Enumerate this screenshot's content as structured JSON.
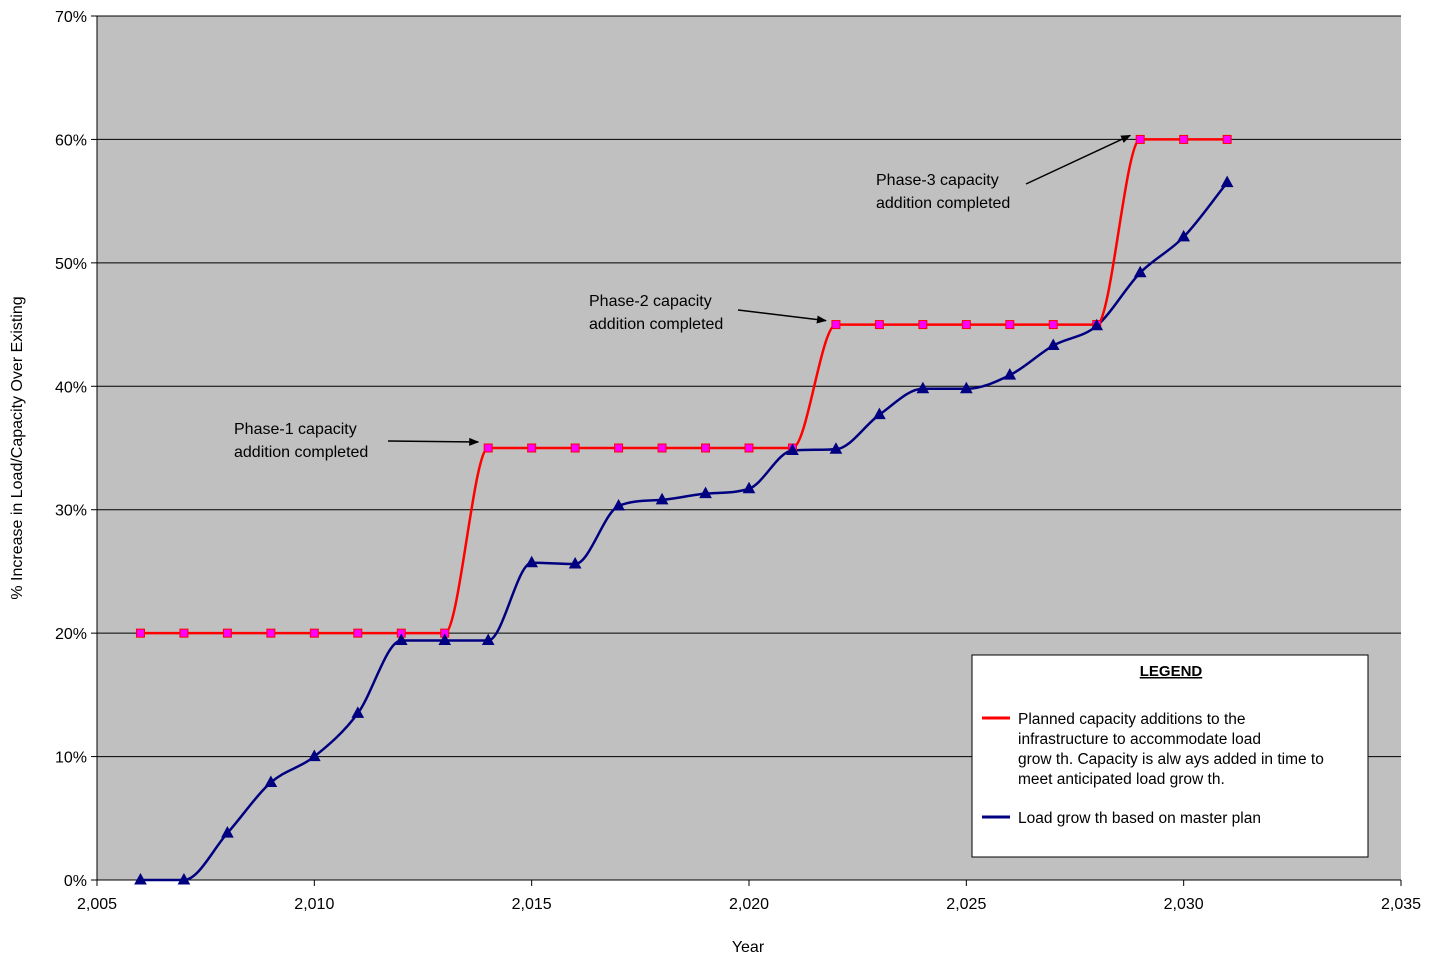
{
  "chart_data": {
    "type": "line",
    "xlabel": "Year",
    "ylabel": "% Increase in Load/Capacity Over Existing",
    "xlim": [
      2005,
      2035
    ],
    "ylim": [
      0,
      70
    ],
    "x_ticks": [
      2005,
      2010,
      2015,
      2020,
      2025,
      2030,
      2035
    ],
    "x_tick_labels": [
      "2,005",
      "2,010",
      "2,015",
      "2,020",
      "2,025",
      "2,030",
      "2,035"
    ],
    "y_ticks": [
      0,
      10,
      20,
      30,
      40,
      50,
      60,
      70
    ],
    "y_tick_labels": [
      "0%",
      "10%",
      "20%",
      "30%",
      "40%",
      "50%",
      "60%",
      "70%"
    ],
    "grid": "horizontal",
    "plot_background": "#c0c0c0",
    "series": [
      {
        "id": "capacity",
        "name": "Planned capacity additions to the infrastructure to accommodate load growth. Capacity is always added in time to meet anticipated load growth.",
        "color": "#ff0000",
        "marker": "square",
        "marker_color": "#ff00ff",
        "x": [
          2006,
          2007,
          2008,
          2009,
          2010,
          2011,
          2012,
          2013,
          2014,
          2015,
          2016,
          2017,
          2018,
          2019,
          2020,
          2021,
          2022,
          2023,
          2024,
          2025,
          2026,
          2027,
          2028,
          2029,
          2030,
          2031
        ],
        "y": [
          20,
          20,
          20,
          20,
          20,
          20,
          20,
          20,
          35,
          35,
          35,
          35,
          35,
          35,
          35,
          35,
          45,
          45,
          45,
          45,
          45,
          45,
          45,
          60,
          60,
          60
        ]
      },
      {
        "id": "load",
        "name": "Load growth based on master plan",
        "color": "#000080",
        "marker": "triangle",
        "marker_color": "#000080",
        "x": [
          2006,
          2007,
          2008,
          2009,
          2010,
          2011,
          2012,
          2013,
          2014,
          2015,
          2016,
          2017,
          2018,
          2019,
          2020,
          2021,
          2022,
          2023,
          2024,
          2025,
          2026,
          2027,
          2028,
          2029,
          2030,
          2031
        ],
        "y": [
          0,
          0,
          3.8,
          7.9,
          10,
          13.5,
          19.4,
          19.4,
          19.4,
          25.7,
          25.6,
          30.3,
          30.8,
          31.3,
          31.7,
          34.8,
          34.9,
          37.7,
          39.8,
          39.8,
          40.9,
          43.3,
          44.9,
          49.2,
          52.1,
          56.5
        ]
      }
    ],
    "legend": {
      "title": "LEGEND",
      "position": "bottom-right",
      "entries": [
        {
          "series": "capacity",
          "lines": [
            "Planned capacity additions to the",
            "infrastructure to accommodate load",
            "grow th. Capacity is alw ays added in time to",
            "meet anticipated load grow th."
          ]
        },
        {
          "series": "load",
          "lines": [
            "Load grow th based on master plan"
          ]
        }
      ]
    },
    "annotations": [
      {
        "lines": [
          "Phase-1 capacity",
          "addition completed"
        ],
        "arrow_to": [
          2014,
          35
        ]
      },
      {
        "lines": [
          "Phase-2 capacity",
          "addition completed"
        ],
        "arrow_to": [
          2022,
          45
        ]
      },
      {
        "lines": [
          "Phase-3 capacity",
          "addition completed"
        ],
        "arrow_to": [
          2029,
          60
        ]
      }
    ]
  }
}
